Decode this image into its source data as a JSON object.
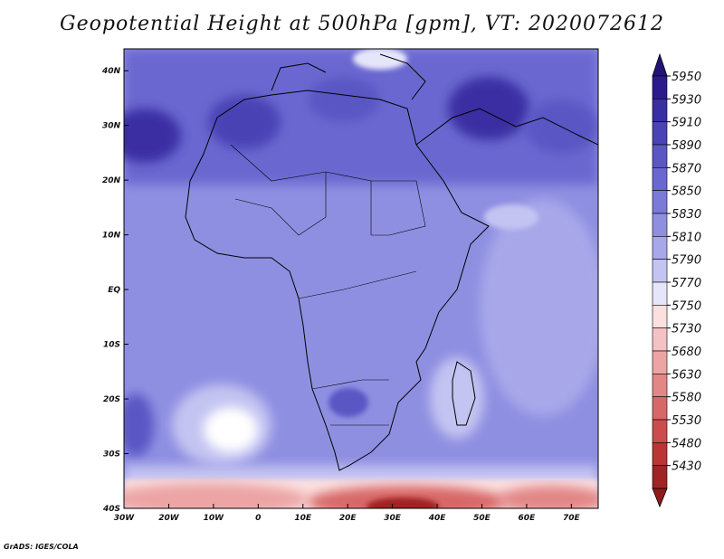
{
  "title": "Geopotential Height at 500hPa [gpm], VT: 2020072612",
  "credit": "GrADS: IGES/COLA",
  "map": {
    "lon_range": [
      -30,
      76
    ],
    "lat_range": [
      -40,
      44
    ],
    "lon_ticks": [
      {
        "value": -30,
        "label": "30W"
      },
      {
        "value": -20,
        "label": "20W"
      },
      {
        "value": -10,
        "label": "10W"
      },
      {
        "value": 0,
        "label": "0"
      },
      {
        "value": 10,
        "label": "10E"
      },
      {
        "value": 20,
        "label": "20E"
      },
      {
        "value": 30,
        "label": "30E"
      },
      {
        "value": 40,
        "label": "40E"
      },
      {
        "value": 50,
        "label": "50E"
      },
      {
        "value": 60,
        "label": "60E"
      },
      {
        "value": 70,
        "label": "70E"
      }
    ],
    "lat_ticks": [
      {
        "value": 40,
        "label": "40N"
      },
      {
        "value": 30,
        "label": "30N"
      },
      {
        "value": 20,
        "label": "20N"
      },
      {
        "value": 10,
        "label": "10N"
      },
      {
        "value": 0,
        "label": "EQ"
      },
      {
        "value": -10,
        "label": "10S"
      },
      {
        "value": -20,
        "label": "20S"
      },
      {
        "value": -30,
        "label": "30S"
      },
      {
        "value": -40,
        "label": "40S"
      }
    ]
  },
  "colorbar": {
    "levels": [
      {
        "label": "5950",
        "color": "#2b1a8c"
      },
      {
        "label": "5930",
        "color": "#3a2ea3"
      },
      {
        "label": "5910",
        "color": "#4a42b5"
      },
      {
        "label": "5890",
        "color": "#5a56c4"
      },
      {
        "label": "5870",
        "color": "#6a68d0"
      },
      {
        "label": "5850",
        "color": "#7a7ad9"
      },
      {
        "label": "5830",
        "color": "#8f8fe2"
      },
      {
        "label": "5810",
        "color": "#a7a7ea"
      },
      {
        "label": "5790",
        "color": "#c4c4f2"
      },
      {
        "label": "5770",
        "color": "#e6e6fb"
      },
      {
        "label": "5750",
        "color": "#fbe0e0"
      },
      {
        "label": "5730",
        "color": "#f4c2c2"
      },
      {
        "label": "5680",
        "color": "#eca4a4"
      },
      {
        "label": "5630",
        "color": "#e28686"
      },
      {
        "label": "5580",
        "color": "#d86868"
      },
      {
        "label": "5530",
        "color": "#cc4c4c"
      },
      {
        "label": "5480",
        "color": "#bb3535"
      },
      {
        "label": "5430",
        "color": "#a02424"
      }
    ],
    "top_cap_color": "#241377",
    "bottom_cap_color": "#8f1a1a"
  }
}
